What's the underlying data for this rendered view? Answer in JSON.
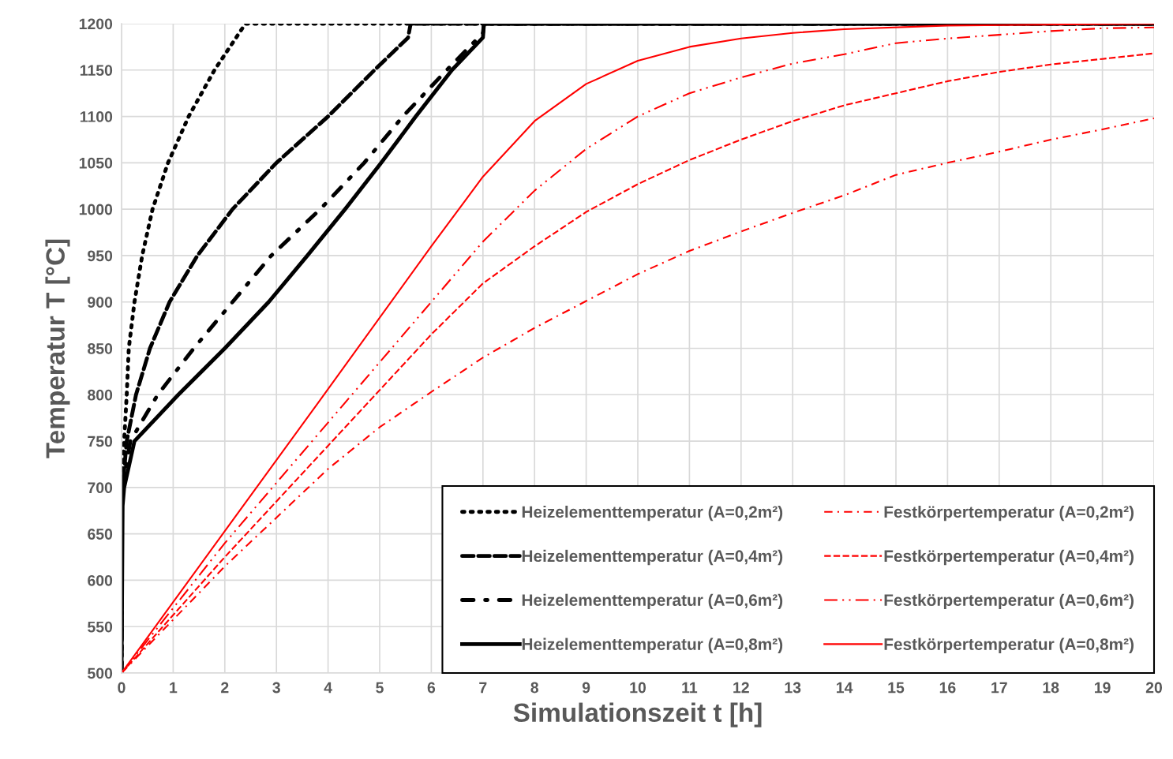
{
  "chart_data": {
    "type": "line",
    "xlabel": "Simulationszeit t [h]",
    "ylabel": "Temperatur T [°C]",
    "xlim": [
      0,
      20
    ],
    "ylim": [
      500,
      1200
    ],
    "xticks": [
      0,
      1,
      2,
      3,
      4,
      5,
      6,
      7,
      8,
      9,
      10,
      11,
      12,
      13,
      14,
      15,
      16,
      17,
      18,
      19,
      20
    ],
    "yticks": [
      500,
      550,
      600,
      650,
      700,
      750,
      800,
      850,
      900,
      950,
      1000,
      1050,
      1100,
      1150,
      1200
    ],
    "grid": true,
    "legend": "bottom right",
    "marker": "none",
    "series": [
      {
        "name": "Heizelementtemperatur (A=0,2m²)",
        "color": "#000000",
        "line_style": "dotted",
        "x": [
          0,
          0.01,
          0.05,
          0.1,
          0.14,
          0.25,
          0.4,
          0.6,
          0.9,
          1.3,
          1.8,
          2.4,
          20
        ],
        "values": [
          500,
          700,
          750,
          800,
          850,
          900,
          950,
          1000,
          1050,
          1100,
          1150,
          1200,
          1200
        ]
      },
      {
        "name": "Heizelementtemperatur (A=0,4m²)",
        "color": "#000000",
        "line_style": "dashed",
        "x": [
          0,
          0.01,
          0.02,
          0.1,
          0.28,
          0.55,
          0.93,
          1.47,
          2.15,
          3.0,
          4.0,
          4.9,
          5.55,
          5.6,
          20
        ],
        "values": [
          500,
          690,
          700,
          750,
          800,
          850,
          900,
          950,
          1000,
          1050,
          1100,
          1150,
          1185,
          1200,
          1200
        ]
      },
      {
        "name": "Heizelementtemperatur (A=0,6m²)",
        "color": "#000000",
        "line_style": "dashdot",
        "x": [
          0,
          0.01,
          0.02,
          0.17,
          0.7,
          1.4,
          2.15,
          2.9,
          3.85,
          4.7,
          5.45,
          6.3,
          7.0,
          7.02,
          20
        ],
        "values": [
          500,
          690,
          700,
          750,
          800,
          850,
          900,
          950,
          1000,
          1050,
          1100,
          1150,
          1190,
          1200,
          1200
        ]
      },
      {
        "name": "Heizelementtemperatur (A=0,8m²)",
        "color": "#000000",
        "line_style": "solid",
        "x": [
          0,
          0.02,
          0.05,
          0.25,
          1.1,
          2.0,
          2.85,
          3.6,
          4.33,
          5.03,
          5.7,
          6.4,
          7.0,
          7.02,
          20
        ],
        "values": [
          500,
          680,
          700,
          750,
          800,
          850,
          900,
          950,
          1000,
          1050,
          1100,
          1150,
          1185,
          1200,
          1200
        ]
      },
      {
        "name": "Festkörpertemperatur (A=0,2m²)",
        "color": "#ff0000",
        "line_style": "dashdot",
        "x": [
          0,
          2,
          4,
          5,
          6,
          7,
          8,
          9,
          10,
          11,
          12,
          13,
          14,
          15,
          16,
          17,
          18,
          19,
          20
        ],
        "values": [
          500,
          615,
          720,
          765,
          803,
          840,
          872,
          901,
          930,
          955,
          976,
          996,
          1015,
          1037,
          1050,
          1062,
          1075,
          1086,
          1098
        ]
      },
      {
        "name": "Festkörpertemperatur (A=0,4m²)",
        "color": "#ff0000",
        "line_style": "dashed",
        "x": [
          0,
          2,
          4,
          5,
          6,
          7,
          8,
          9,
          10,
          11,
          12,
          13,
          14,
          15,
          16,
          17,
          18,
          19,
          20
        ],
        "values": [
          500,
          625,
          745,
          805,
          865,
          920,
          960,
          997,
          1027,
          1053,
          1075,
          1095,
          1112,
          1125,
          1138,
          1148,
          1156,
          1162,
          1168
        ]
      },
      {
        "name": "Festkörpertemperatur (A=0,6m²)",
        "color": "#ff0000",
        "line_style": "dashdotdot",
        "x": [
          0,
          2,
          4,
          5,
          6,
          7,
          8,
          9,
          10,
          11,
          12,
          13,
          14,
          15,
          16,
          17,
          18,
          19,
          20
        ],
        "values": [
          500,
          640,
          770,
          835,
          900,
          965,
          1020,
          1065,
          1100,
          1125,
          1142,
          1157,
          1167,
          1179,
          1184,
          1188,
          1192,
          1195,
          1196
        ]
      },
      {
        "name": "Festkörpertemperatur (A=0,8m²)",
        "color": "#ff0000",
        "line_style": "solid",
        "x": [
          0,
          2,
          4,
          6,
          7,
          8,
          9,
          10,
          11,
          12,
          13,
          14,
          16,
          20
        ],
        "values": [
          500,
          653,
          806,
          960,
          1035,
          1095,
          1135,
          1160,
          1175,
          1184,
          1190,
          1194,
          1198,
          1200
        ]
      }
    ]
  }
}
